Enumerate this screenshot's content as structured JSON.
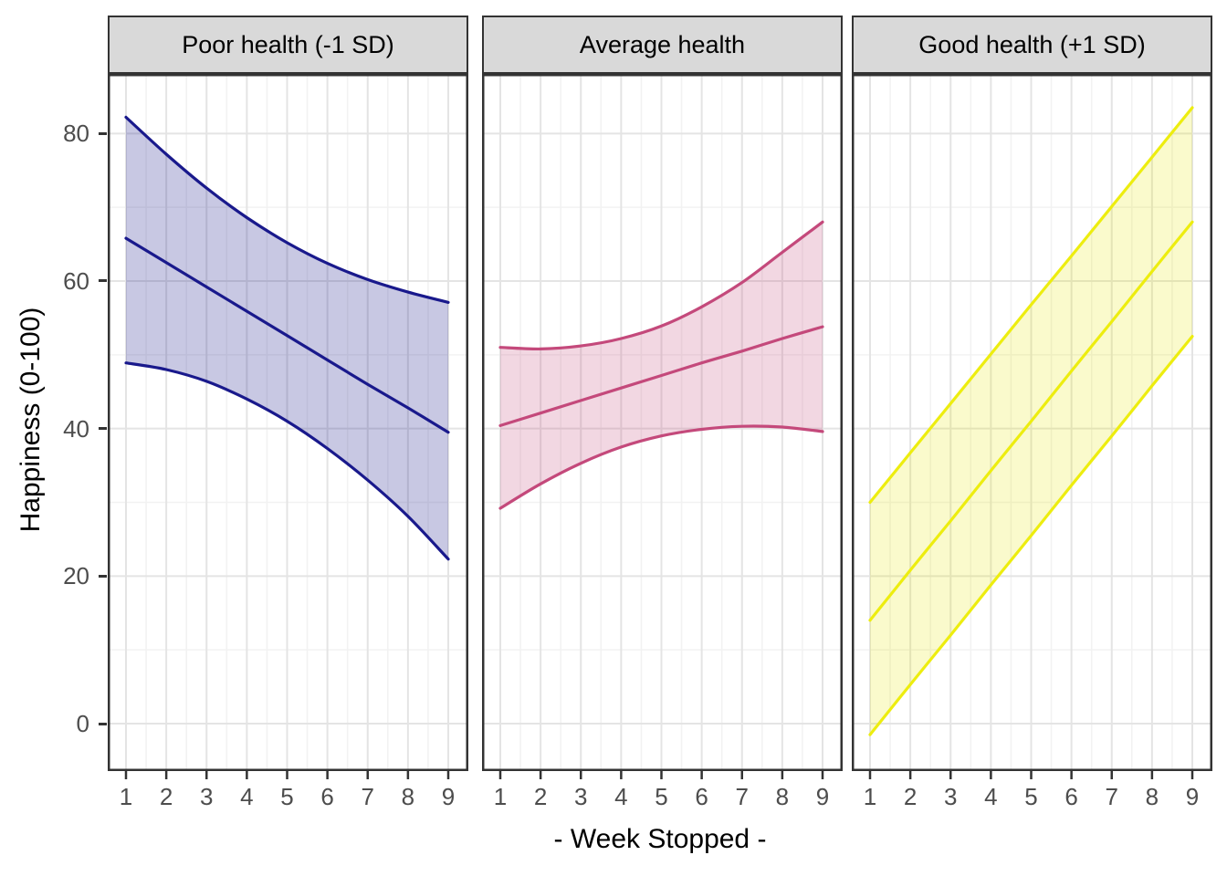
{
  "figure": {
    "kind": "faceted ribbon/line plot (ggplot-style interaction plot)",
    "background": "#ffffff"
  },
  "chart_data": {
    "type": "line",
    "x": [
      1,
      2,
      3,
      4,
      5,
      6,
      7,
      8,
      9
    ],
    "x_ticks": [
      1,
      2,
      3,
      4,
      5,
      6,
      7,
      8,
      9
    ],
    "y_ticks": [
      0,
      20,
      40,
      60,
      80
    ],
    "ylim": [
      -6.3,
      88.2
    ],
    "xlabel": "- Week Stopped -",
    "ylabel": "Happiness (0-100)",
    "grid": "major and minor gridlines, light gray on white, black panel border",
    "legend": "none (facets labelled in strips)",
    "facets": [
      {
        "label": "Poor health (-1 SD)",
        "line_color": "#19198C",
        "fill_color": "rgba(25,25,140,0.24)",
        "series": {
          "mean": [
            65.8,
            62.5,
            59.2,
            55.9,
            52.6,
            49.3,
            46.0,
            42.8,
            39.5
          ],
          "ci_upper": [
            82.2,
            77.2,
            72.6,
            68.6,
            65.2,
            62.4,
            60.2,
            58.5,
            57.1
          ],
          "ci_lower": [
            48.9,
            48.0,
            46.4,
            44.0,
            41.0,
            37.3,
            33.0,
            28.1,
            22.3
          ]
        }
      },
      {
        "label": "Average health",
        "line_color": "#C4497B",
        "fill_color": "rgba(196,73,123,0.22)",
        "series": {
          "mean": [
            40.4,
            42.1,
            43.8,
            45.5,
            47.2,
            48.9,
            50.5,
            52.2,
            53.8
          ],
          "ci_upper": [
            51.0,
            50.8,
            51.2,
            52.2,
            53.9,
            56.5,
            59.8,
            63.9,
            68.0
          ],
          "ci_lower": [
            29.2,
            32.5,
            35.3,
            37.5,
            39.0,
            39.9,
            40.3,
            40.2,
            39.6
          ]
        }
      },
      {
        "label": "Good health (+1 SD)",
        "line_color": "#EDED0F",
        "fill_color": "rgba(230,230,0,0.20)",
        "series": {
          "mean": [
            14.0,
            20.8,
            27.5,
            34.3,
            41.0,
            47.8,
            54.5,
            61.3,
            68.0
          ],
          "ci_upper": [
            30.0,
            36.7,
            43.4,
            50.1,
            56.8,
            63.4,
            70.1,
            76.8,
            83.5
          ],
          "ci_lower": [
            -1.5,
            5.3,
            12.0,
            18.8,
            25.5,
            32.3,
            39.0,
            45.8,
            52.5
          ]
        }
      }
    ],
    "theme": {
      "panel_border": "#333333",
      "strip_background": "#D9D9D9",
      "strip_text_color": "#000000",
      "grid_major": "#E4E4E4",
      "grid_minor": "#F2F2F2",
      "axis_text_color": "#4D4D4D",
      "axis_title_color": "#000000",
      "tick_color": "#333333"
    }
  }
}
